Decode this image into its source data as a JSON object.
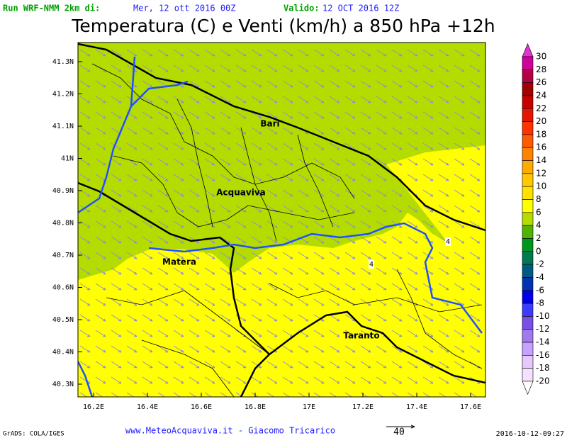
{
  "header": {
    "run": "Run WRF-NMM 2km di:",
    "run_date": "Mer, 12 ott 2016 00Z",
    "valid_label": "Valido:",
    "valid_date": "12 OCT 2016 12Z"
  },
  "title": "Temperatura (C) e Venti (km/h) a 850 hPa +12h",
  "map": {
    "lat_labels": [
      "41.3N",
      "41.2N",
      "41.1N",
      "41N",
      "40.9N",
      "40.8N",
      "40.7N",
      "40.6N",
      "40.5N",
      "40.4N",
      "40.3N"
    ],
    "lon_labels": [
      "16.2E",
      "16.4E",
      "16.6E",
      "16.8E",
      "17E",
      "17.2E",
      "17.4E",
      "17.6E"
    ],
    "places": [
      "Bari",
      "Acquaviva",
      "Matera",
      "Taranto"
    ],
    "contour_labels": [
      "4",
      "4"
    ]
  },
  "colorbar": {
    "levels": [
      30,
      28,
      26,
      24,
      22,
      20,
      18,
      16,
      14,
      12,
      10,
      8,
      6,
      4,
      2,
      0,
      -2,
      -4,
      -6,
      -8,
      -10,
      -12,
      -14,
      -16,
      -18,
      -20
    ],
    "colors": [
      "#e632d2",
      "#d2009b",
      "#b40046",
      "#a00000",
      "#c80000",
      "#e61400",
      "#ff3200",
      "#ff5a00",
      "#ff8200",
      "#ffaa00",
      "#ffc800",
      "#ffe100",
      "#ffff00",
      "#b4dc00",
      "#50b400",
      "#00961e",
      "#007850",
      "#005a82",
      "#0032b4",
      "#0000e6",
      "#3c3cff",
      "#7850e6",
      "#a078f0",
      "#c8a0ff",
      "#e6c8ff",
      "#f5e1ff",
      "#ffffff"
    ]
  },
  "footer": {
    "left": "GrADS: COLA/IGES",
    "center": "www.MeteoAcquaviva.it - Giacomo Tricarico",
    "vector_label": "40",
    "right": "2016-10-12-09:27"
  }
}
